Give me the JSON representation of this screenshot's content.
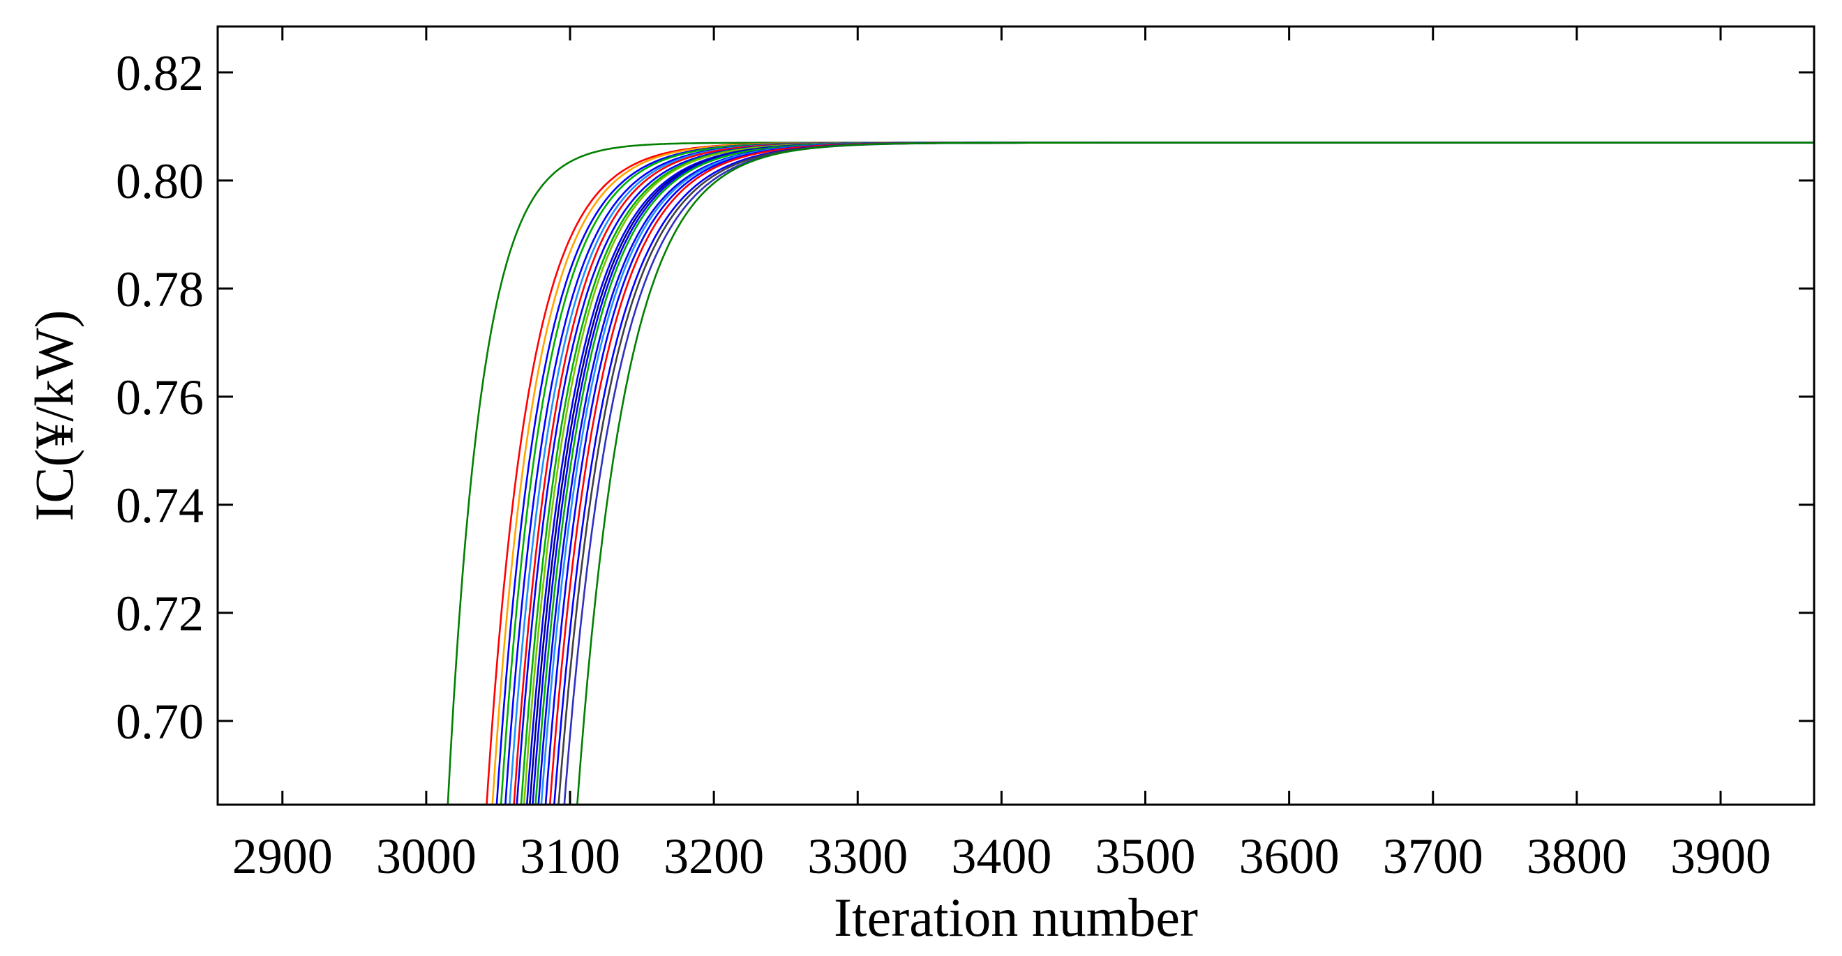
{
  "chart_data": {
    "type": "line",
    "title": "",
    "xlabel": "Iteration number",
    "ylabel": "IC(¥/kW)",
    "xlim": [
      2855,
      3965
    ],
    "ylim": [
      0.6845,
      0.8285
    ],
    "xticks": [
      2900,
      3000,
      3100,
      3200,
      3300,
      3400,
      3500,
      3600,
      3700,
      3800,
      3900
    ],
    "xtick_labels": [
      "2900",
      "3000",
      "3100",
      "3200",
      "3300",
      "3400",
      "3500",
      "3600",
      "3700",
      "3800",
      "3900"
    ],
    "yticks": [
      0.7,
      0.72,
      0.74,
      0.76,
      0.78,
      0.8,
      0.82
    ],
    "ytick_labels": [
      "0.70",
      "0.72",
      "0.74",
      "0.76",
      "0.78",
      "0.80",
      "0.82"
    ],
    "grid": false,
    "legend": "none",
    "converged_value": 0.807,
    "series": [
      {
        "color": "#007f00",
        "start_x": 3015,
        "tau": 24,
        "end_x": 3965
      },
      {
        "color": "#ff0000",
        "start_x": 3042,
        "tau": 30,
        "end_x": 3965
      },
      {
        "color": "#ffa500",
        "start_x": 3046,
        "tau": 30,
        "end_x": 3965
      },
      {
        "color": "#0000ff",
        "start_x": 3049,
        "tau": 31,
        "end_x": 3965
      },
      {
        "color": "#00b000",
        "start_x": 3052,
        "tau": 31,
        "end_x": 3965
      },
      {
        "color": "#0000ff",
        "start_x": 3055,
        "tau": 32,
        "end_x": 3965
      },
      {
        "color": "#1e90ff",
        "start_x": 3058,
        "tau": 32,
        "end_x": 3965
      },
      {
        "color": "#ff0000",
        "start_x": 3061,
        "tau": 32,
        "end_x": 3965
      },
      {
        "color": "#0000ff",
        "start_x": 3063,
        "tau": 33,
        "end_x": 3965
      },
      {
        "color": "#00b000",
        "start_x": 3066,
        "tau": 33,
        "end_x": 3965
      },
      {
        "color": "#7fbf00",
        "start_x": 3068,
        "tau": 33,
        "end_x": 3965
      },
      {
        "color": "#0000ff",
        "start_x": 3070,
        "tau": 34,
        "end_x": 3965
      },
      {
        "color": "#00008b",
        "start_x": 3072,
        "tau": 34,
        "end_x": 3965
      },
      {
        "color": "#0000ff",
        "start_x": 3074,
        "tau": 34,
        "end_x": 3965
      },
      {
        "color": "#00b000",
        "start_x": 3076,
        "tau": 34,
        "end_x": 3965
      },
      {
        "color": "#0000ff",
        "start_x": 3078,
        "tau": 35,
        "end_x": 3965
      },
      {
        "color": "#1e90ff",
        "start_x": 3080,
        "tau": 35,
        "end_x": 3965
      },
      {
        "color": "#0000ff",
        "start_x": 3083,
        "tau": 35,
        "end_x": 3965
      },
      {
        "color": "#ff0000",
        "start_x": 3086,
        "tau": 35,
        "end_x": 3965
      },
      {
        "color": "#0000ff",
        "start_x": 3089,
        "tau": 36,
        "end_x": 3965
      },
      {
        "color": "#404040",
        "start_x": 3092,
        "tau": 36,
        "end_x": 3965
      },
      {
        "color": "#3030c0",
        "start_x": 3096,
        "tau": 36,
        "end_x": 3965
      },
      {
        "color": "#007f00",
        "start_x": 3105,
        "tau": 34,
        "end_x": 3965
      }
    ]
  }
}
